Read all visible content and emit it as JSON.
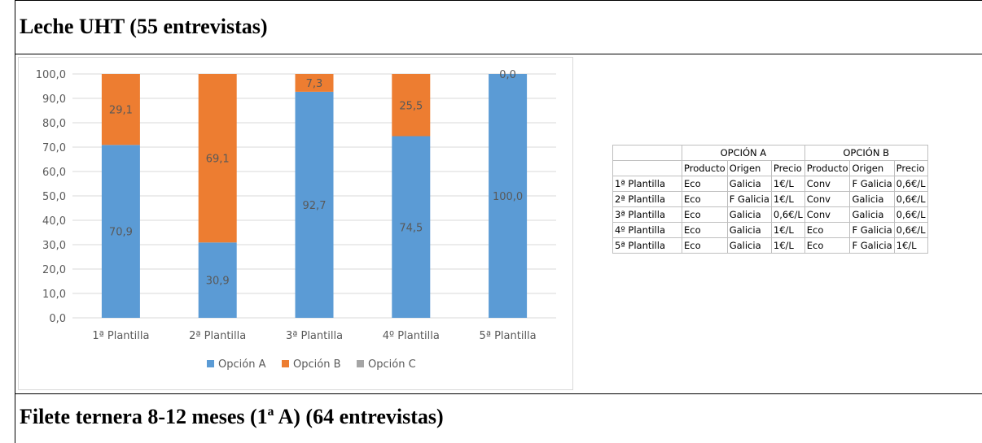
{
  "headings": {
    "top": "Leche UHT (55 entrevistas)",
    "bottom": "Filete ternera 8-12 meses (1ª A) (64 entrevistas)"
  },
  "colors": {
    "opcion_a": "#5b9bd5",
    "opcion_b": "#ed7d31",
    "opcion_c": "#a5a5a5",
    "grid": "#d9d9d9",
    "axis_text": "#595959"
  },
  "chart_data": {
    "type": "bar",
    "stacked": true,
    "categories": [
      "1ª Plantilla",
      "2ª Plantilla",
      "3ª Plantilla",
      "4º Plantilla",
      "5ª Plantilla"
    ],
    "series": [
      {
        "name": "Opción A",
        "values": [
          70.9,
          30.9,
          92.7,
          74.5,
          100.0
        ],
        "labels": [
          "70,9",
          "30,9",
          "92,7",
          "74,5",
          "100,0"
        ]
      },
      {
        "name": "Opción B",
        "values": [
          29.1,
          69.1,
          7.3,
          25.5,
          0.0
        ],
        "labels": [
          "29,1",
          "69,1",
          "7,3",
          "25,5",
          "0,0"
        ]
      },
      {
        "name": "Opción C",
        "values": [
          0,
          0,
          0,
          0,
          0
        ],
        "labels": []
      }
    ],
    "yticks": [
      "0,0",
      "10,0",
      "20,0",
      "30,0",
      "40,0",
      "50,0",
      "60,0",
      "70,0",
      "80,0",
      "90,0",
      "100,0"
    ],
    "ylim": [
      0,
      100
    ],
    "grid": true,
    "legend": "bottom"
  },
  "table": {
    "group_headers": [
      "",
      "OPCIÓN A",
      "OPCIÓN B"
    ],
    "sub_headers": [
      "",
      "Producto",
      "Origen",
      "Precio",
      "Producto",
      "Origen",
      "Precio"
    ],
    "rows": [
      [
        "1ª Plantilla",
        "Eco",
        "Galicia",
        "1€/L",
        "Conv",
        "F Galicia",
        "0,6€/L"
      ],
      [
        "2ª Plantilla",
        "Eco",
        "F Galicia",
        "1€/L",
        "Conv",
        "Galicia",
        "0,6€/L"
      ],
      [
        "3ª Plantilla",
        "Eco",
        "Galicia",
        "0,6€/L",
        "Conv",
        "Galicia",
        "0,6€/L"
      ],
      [
        "4º Plantilla",
        "Eco",
        "Galicia",
        "1€/L",
        "Eco",
        "F Galicia",
        "0,6€/L"
      ],
      [
        "5ª Plantilla",
        "Eco",
        "Galicia",
        "1€/L",
        "Eco",
        "F Galicia",
        "1€/L"
      ]
    ]
  }
}
